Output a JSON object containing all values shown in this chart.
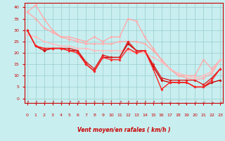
{
  "xlabel": "Vent moyen/en rafales ( km/h )",
  "xlabel_color": "#cc0000",
  "bg_color": "#c8eef0",
  "grid_color": "#99cccc",
  "x_ticks": [
    0,
    1,
    2,
    3,
    4,
    5,
    6,
    7,
    8,
    9,
    10,
    11,
    12,
    13,
    14,
    15,
    16,
    17,
    18,
    19,
    20,
    21,
    22,
    23
  ],
  "y_ticks": [
    0,
    5,
    10,
    15,
    20,
    25,
    30,
    35,
    40
  ],
  "ylim": [
    -2,
    42
  ],
  "xlim": [
    -0.3,
    23.3
  ],
  "series": [
    {
      "comment": "top light pink envelope - max gusts, descends from ~38 at 0 to ~17 at 23, with peak ~41 at x=1",
      "color": "#ffaaaa",
      "lw": 1.0,
      "marker": "D",
      "ms": 2.0,
      "y": [
        38,
        41,
        35,
        30,
        27,
        27,
        26,
        25,
        27,
        25,
        27,
        27,
        35,
        34,
        27,
        22,
        17,
        13,
        10,
        10,
        10,
        17,
        13,
        17
      ]
    },
    {
      "comment": "second light pink - nearly straight descending from ~38 at 0 to ~17 at 23",
      "color": "#ffaaaa",
      "lw": 1.0,
      "marker": "D",
      "ms": 2.0,
      "y": [
        38,
        35,
        31,
        29,
        27,
        26,
        25,
        24,
        24,
        24,
        24,
        25,
        25,
        25,
        24,
        21,
        17,
        13,
        10,
        9,
        8,
        9,
        11,
        17
      ]
    },
    {
      "comment": "third pink - broad smooth descend from ~28 at 0",
      "color": "#ffbbbb",
      "lw": 1.0,
      "marker": "D",
      "ms": 2.0,
      "y": [
        28,
        27,
        25,
        24,
        23,
        23,
        22,
        22,
        21,
        21,
        21,
        21,
        21,
        20,
        20,
        18,
        16,
        13,
        11,
        10,
        9,
        10,
        12,
        17
      ]
    },
    {
      "comment": "dark red line 1 - starts ~30, dips, peaks at 12~24, then drops",
      "color": "#cc0000",
      "lw": 1.0,
      "marker": "D",
      "ms": 2.0,
      "y": [
        30,
        23,
        21,
        22,
        22,
        21,
        21,
        15,
        12,
        18,
        18,
        18,
        24,
        21,
        21,
        14,
        8,
        7,
        7,
        7,
        5,
        5,
        7,
        8
      ]
    },
    {
      "comment": "dark red line 2 - similar to above, slight variant",
      "color": "#dd2222",
      "lw": 1.0,
      "marker": "D",
      "ms": 2.0,
      "y": [
        30,
        23,
        22,
        22,
        22,
        22,
        21,
        16,
        13,
        19,
        18,
        18,
        25,
        21,
        21,
        15,
        9,
        8,
        8,
        8,
        8,
        6,
        9,
        13
      ]
    },
    {
      "comment": "bright red - starts ~30, dip to 12, peak 12=24, drops to 4 at x=16, recovers to 13",
      "color": "#ff2222",
      "lw": 1.0,
      "marker": "D",
      "ms": 2.0,
      "y": [
        30,
        23,
        22,
        22,
        22,
        21,
        20,
        15,
        12,
        18,
        17,
        17,
        22,
        20,
        21,
        13,
        4,
        7,
        7,
        7,
        5,
        5,
        8,
        13
      ]
    }
  ],
  "wind_arrows": [
    "↗",
    "↗",
    "↗",
    "↗",
    "↗",
    "↗",
    "↗",
    "↑",
    "↖",
    "↑",
    "↑",
    "↗",
    "↗",
    "↗",
    "↗",
    "↗",
    "↙",
    "↙",
    "←",
    "←",
    "↙",
    "↙",
    "↘",
    "↘"
  ]
}
